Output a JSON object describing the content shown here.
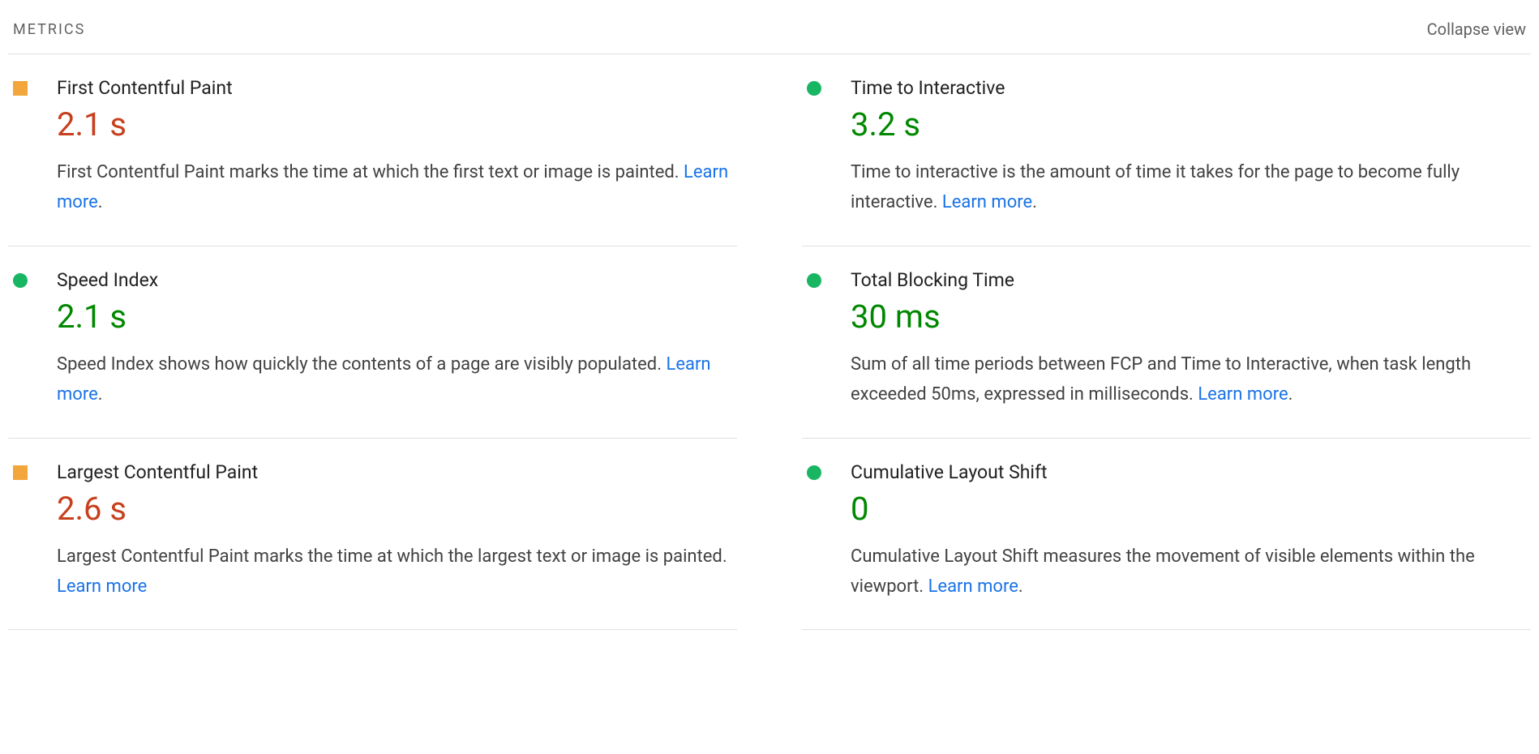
{
  "header": {
    "section_label": "METRICS",
    "collapse_label": "Collapse view"
  },
  "colors": {
    "warn_indicator": "#f2a63b",
    "warn_value": "#c7401e",
    "pass_indicator": "#18b663",
    "pass_value": "#008800",
    "link": "#1a73e8",
    "divider": "#e0e0e0",
    "text_muted": "#616161",
    "text_body": "#424242"
  },
  "learn_more_label": "Learn more",
  "metrics": [
    {
      "title": "First Contentful Paint",
      "value": "2.1 s",
      "status": "warn",
      "desc_prefix": "First Contentful Paint marks the time at which the first text or image is painted. ",
      "desc_suffix": "."
    },
    {
      "title": "Time to Interactive",
      "value": "3.2 s",
      "status": "pass",
      "desc_prefix": "Time to interactive is the amount of time it takes for the page to become fully interactive. ",
      "desc_suffix": "."
    },
    {
      "title": "Speed Index",
      "value": "2.1 s",
      "status": "pass",
      "desc_prefix": "Speed Index shows how quickly the contents of a page are visibly populated. ",
      "desc_suffix": "."
    },
    {
      "title": "Total Blocking Time",
      "value": "30 ms",
      "status": "pass",
      "desc_prefix": "Sum of all time periods between FCP and Time to Interactive, when task length exceeded 50ms, expressed in milliseconds. ",
      "desc_suffix": "."
    },
    {
      "title": "Largest Contentful Paint",
      "value": "2.6 s",
      "status": "warn",
      "desc_prefix": "Largest Contentful Paint marks the time at which the largest text or image is painted. ",
      "desc_suffix": ""
    },
    {
      "title": "Cumulative Layout Shift",
      "value": "0",
      "status": "pass",
      "desc_prefix": "Cumulative Layout Shift measures the movement of visible elements within the viewport. ",
      "desc_suffix": "."
    }
  ]
}
